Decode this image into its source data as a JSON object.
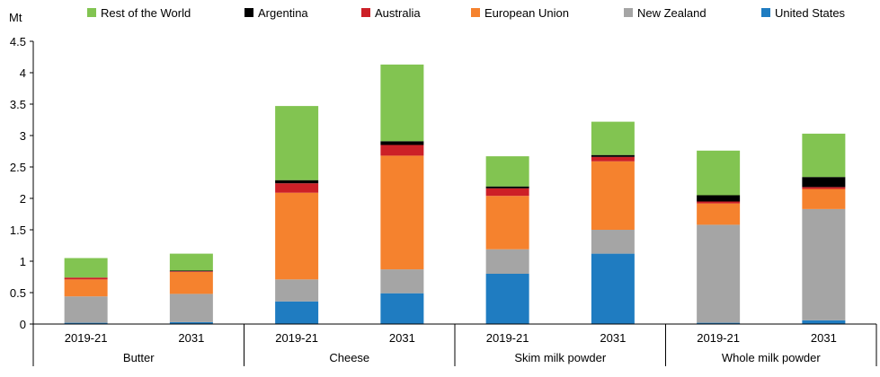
{
  "chart_data": {
    "type": "bar",
    "stacked": true,
    "ylabel": "Mt",
    "ylim": [
      0,
      4.5
    ],
    "yticks": [
      "0",
      "0.5",
      "1",
      "1.5",
      "2",
      "2.5",
      "3",
      "3.5",
      "4",
      "4.5"
    ],
    "grid": false,
    "legend_position": "top",
    "groups": [
      {
        "name": "Butter",
        "categories": [
          "2019-21",
          "2031"
        ]
      },
      {
        "name": "Cheese",
        "categories": [
          "2019-21",
          "2031"
        ]
      },
      {
        "name": "Skim milk powder",
        "categories": [
          "2019-21",
          "2031"
        ]
      },
      {
        "name": "Whole milk powder",
        "categories": [
          "2019-21",
          "2031"
        ]
      }
    ],
    "categories": [
      "Butter 2019-21",
      "Butter 2031",
      "Cheese 2019-21",
      "Cheese 2031",
      "Skim milk powder 2019-21",
      "Skim milk powder 2031",
      "Whole milk powder 2019-21",
      "Whole milk powder 2031"
    ],
    "series": [
      {
        "name": "United States",
        "color": "#1f7cc1",
        "values": [
          0.02,
          0.03,
          0.36,
          0.49,
          0.8,
          1.12,
          0.02,
          0.06
        ]
      },
      {
        "name": "New Zealand",
        "color": "#a5a5a5",
        "values": [
          0.42,
          0.45,
          0.35,
          0.38,
          0.39,
          0.38,
          1.56,
          1.77
        ]
      },
      {
        "name": "European Union",
        "color": "#f5822e",
        "values": [
          0.27,
          0.35,
          1.38,
          1.81,
          0.85,
          1.09,
          0.34,
          0.32
        ]
      },
      {
        "name": "Australia",
        "color": "#cc2027",
        "values": [
          0.03,
          0.01,
          0.15,
          0.17,
          0.12,
          0.07,
          0.03,
          0.03
        ]
      },
      {
        "name": "Argentina",
        "color": "#000000",
        "values": [
          0.0,
          0.01,
          0.05,
          0.06,
          0.03,
          0.03,
          0.1,
          0.16
        ]
      },
      {
        "name": "Rest of the World",
        "color": "#82c451",
        "values": [
          0.31,
          0.27,
          1.18,
          1.22,
          0.48,
          0.53,
          0.71,
          0.69
        ]
      }
    ],
    "legend_order": [
      "Rest of the World",
      "Argentina",
      "Australia",
      "European Union",
      "New Zealand",
      "United States"
    ]
  }
}
